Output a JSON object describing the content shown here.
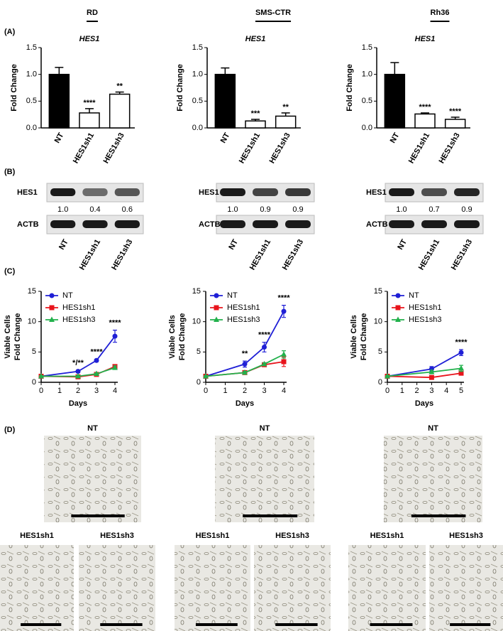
{
  "columns": [
    "RD",
    "SMS-CTR",
    "Rh36"
  ],
  "panels": [
    "(A)",
    "(B)",
    "(C)",
    "(D)"
  ],
  "chart_data": [
    {
      "type": "bar",
      "title": "HES1",
      "ylabel": "Fold Change",
      "categories": [
        "NT",
        "HES1sh1",
        "HES1sh3"
      ],
      "values": [
        1.0,
        0.28,
        0.63
      ],
      "errors": [
        0.13,
        0.08,
        0.04
      ],
      "annotations": [
        null,
        "****",
        "**"
      ],
      "colors": [
        "#000000",
        "#ffffff",
        "#ffffff"
      ],
      "ylim": [
        0,
        1.5
      ],
      "yticks": [
        {
          "value": 0,
          "label": "0.0"
        },
        0.5,
        {
          "value": 1,
          "label": "1.0"
        },
        1.5
      ]
    },
    {
      "type": "bar",
      "title": "HES1",
      "ylabel": "Fold Change",
      "categories": [
        "NT",
        "HES1sh1",
        "HES1sh3"
      ],
      "values": [
        1.0,
        0.13,
        0.22
      ],
      "errors": [
        0.12,
        0.03,
        0.06
      ],
      "annotations": [
        null,
        "***",
        "**"
      ],
      "colors": [
        "#000000",
        "#ffffff",
        "#ffffff"
      ],
      "ylim": [
        0,
        1.5
      ],
      "yticks": [
        {
          "value": 0,
          "label": "0.0"
        },
        0.5,
        {
          "value": 1,
          "label": "1.0"
        },
        1.5
      ]
    },
    {
      "type": "bar",
      "title": "HES1",
      "ylabel": "Fold Change",
      "categories": [
        "NT",
        "HES1sh1",
        "HES1sh3"
      ],
      "values": [
        1.0,
        0.26,
        0.16
      ],
      "errors": [
        0.22,
        0.02,
        0.04
      ],
      "annotations": [
        null,
        "****",
        "****"
      ],
      "colors": [
        "#000000",
        "#ffffff",
        "#ffffff"
      ],
      "ylim": [
        0,
        1.5
      ],
      "yticks": [
        {
          "value": 0,
          "label": "0.0"
        },
        0.5,
        {
          "value": 1,
          "label": "1.0"
        },
        1.5
      ]
    },
    {
      "type": "line",
      "ylabel": [
        "Viable Cells",
        "Fold Change"
      ],
      "xlabel": "Days",
      "x": [
        0,
        2,
        3,
        4
      ],
      "xlim": [
        0,
        4
      ],
      "xticks": [
        0,
        1,
        2,
        3,
        4
      ],
      "ylim": [
        0,
        15
      ],
      "yticks": [
        0,
        5,
        10,
        15
      ],
      "series": [
        {
          "name": "NT",
          "color": "#1f1fd6",
          "marker": "circle",
          "values": [
            1,
            1.8,
            3.6,
            7.6
          ],
          "errors": [
            0.1,
            0.2,
            0.2,
            1.0
          ]
        },
        {
          "name": "HES1sh1",
          "color": "#e8141c",
          "marker": "square",
          "values": [
            1,
            0.9,
            1.3,
            2.6
          ],
          "errors": [
            0.1,
            0.1,
            0.1,
            0.3
          ]
        },
        {
          "name": "HES1sh3",
          "color": "#22b14c",
          "marker": "triangle",
          "values": [
            1,
            1.0,
            1.4,
            2.4
          ],
          "errors": [
            0.1,
            0.1,
            0.1,
            0.3
          ]
        }
      ],
      "annotations": [
        {
          "x": 2,
          "text": "*/**"
        },
        {
          "x": 3,
          "text": "****"
        },
        {
          "x": 4,
          "text": "****"
        }
      ]
    },
    {
      "type": "line",
      "ylabel": [
        "Viable Cells",
        "Fold Change"
      ],
      "xlabel": "Days",
      "x": [
        0,
        2,
        3,
        4
      ],
      "xlim": [
        0,
        4
      ],
      "xticks": [
        0,
        1,
        2,
        3,
        4
      ],
      "ylim": [
        0,
        15
      ],
      "yticks": [
        0,
        5,
        10,
        15
      ],
      "series": [
        {
          "name": "NT",
          "color": "#1f1fd6",
          "marker": "circle",
          "values": [
            1,
            3.0,
            5.8,
            11.7
          ],
          "errors": [
            0.2,
            0.5,
            0.8,
            1.0
          ]
        },
        {
          "name": "HES1sh1",
          "color": "#e8141c",
          "marker": "square",
          "values": [
            1,
            1.6,
            2.9,
            3.4
          ],
          "errors": [
            0.1,
            0.2,
            0.2,
            0.8
          ]
        },
        {
          "name": "HES1sh3",
          "color": "#22b14c",
          "marker": "triangle",
          "values": [
            1,
            1.6,
            3.0,
            4.6
          ],
          "errors": [
            0.1,
            0.2,
            0.2,
            0.6
          ]
        }
      ],
      "annotations": [
        {
          "x": 2,
          "text": "**"
        },
        {
          "x": 3,
          "text": "****"
        },
        {
          "x": 4,
          "text": "****"
        }
      ]
    },
    {
      "type": "line",
      "ylabel": [
        "Viable Cells",
        "Fold Change"
      ],
      "xlabel": "Days",
      "x": [
        0,
        3,
        5
      ],
      "xlim": [
        0,
        5
      ],
      "xticks": [
        0,
        1,
        2,
        3,
        4,
        5
      ],
      "ylim": [
        0,
        15
      ],
      "yticks": [
        0,
        5,
        10,
        15
      ],
      "series": [
        {
          "name": "NT",
          "color": "#1f1fd6",
          "marker": "circle",
          "values": [
            1,
            2.2,
            4.9
          ],
          "errors": [
            0.1,
            0.4,
            0.5
          ]
        },
        {
          "name": "HES1sh1",
          "color": "#e8141c",
          "marker": "square",
          "values": [
            1,
            0.8,
            1.5
          ],
          "errors": [
            0.1,
            0.2,
            0.3
          ]
        },
        {
          "name": "HES1sh3",
          "color": "#22b14c",
          "marker": "triangle",
          "values": [
            1,
            1.7,
            2.3
          ],
          "errors": [
            0.1,
            0.3,
            0.5
          ]
        }
      ],
      "annotations": [
        {
          "x": 5,
          "text": "****"
        }
      ]
    }
  ],
  "blots": [
    {
      "labels": [
        "HES1",
        "ACTB"
      ],
      "quant": [
        "1.0",
        "0.4",
        "0.6"
      ],
      "lanes": [
        "NT",
        "HES1sh1",
        "HES1sh3"
      ]
    },
    {
      "labels": [
        "HES1",
        "ACTB"
      ],
      "quant": [
        "1.0",
        "0.9",
        "0.9"
      ],
      "lanes": [
        "NT",
        "HES1sh1",
        "HES1sh3"
      ]
    },
    {
      "labels": [
        "HES1",
        "ACTB"
      ],
      "quant": [
        "1.0",
        "0.7",
        "0.9"
      ],
      "lanes": [
        "NT",
        "HES1sh1",
        "HES1sh3"
      ]
    }
  ],
  "images": [
    {
      "top": "NT",
      "bottom": [
        "HES1sh1",
        "HES1sh3"
      ]
    },
    {
      "top": "NT",
      "bottom": [
        "HES1sh1",
        "HES1sh3"
      ]
    },
    {
      "top": "NT",
      "bottom": [
        "HES1sh1",
        "HES1sh3"
      ]
    }
  ]
}
